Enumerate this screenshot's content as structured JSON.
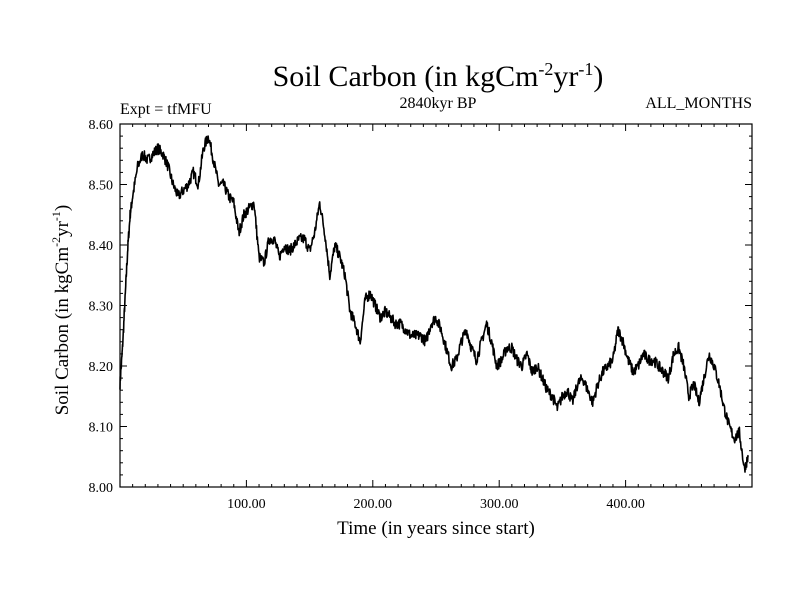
{
  "chart_data": {
    "type": "line",
    "title": "Soil Carbon (in kgCm",
    "title_unit_exp1": "-2",
    "title_unit_mid": "yr",
    "title_unit_exp2": "-1",
    "title_close": ")",
    "subtitle_left": "Expt = tfMFU",
    "subtitle_center": "2840kyr BP",
    "subtitle_right": "ALL_MONTHS",
    "xlabel": "Time (in years since start)",
    "ylabel": "Soil Carbon (in kgCm",
    "ylabel_exp1": "-2",
    "ylabel_mid": "yr",
    "ylabel_exp2": "-1",
    "ylabel_close": ")",
    "xlim": [
      0,
      500
    ],
    "ylim": [
      8.0,
      8.6
    ],
    "xticks": [
      100,
      200,
      300,
      400
    ],
    "xtick_labels": [
      "100.00",
      "200.00",
      "300.00",
      "400.00"
    ],
    "yticks": [
      8.0,
      8.1,
      8.2,
      8.3,
      8.4,
      8.5,
      8.6
    ],
    "ytick_labels": [
      "8.00",
      "8.10",
      "8.20",
      "8.30",
      "8.40",
      "8.50",
      "8.60"
    ],
    "grid": false,
    "line_color": "#000000",
    "series": [
      {
        "name": "Soil Carbon",
        "x": [
          0,
          2,
          4,
          6,
          8,
          10,
          14,
          18,
          22,
          26,
          30,
          34,
          38,
          42,
          46,
          50,
          54,
          58,
          62,
          66,
          70,
          74,
          78,
          82,
          86,
          90,
          94,
          98,
          102,
          106,
          110,
          114,
          118,
          122,
          126,
          130,
          134,
          138,
          142,
          146,
          150,
          154,
          158,
          162,
          166,
          170,
          174,
          178,
          182,
          186,
          190,
          194,
          198,
          202,
          206,
          210,
          214,
          218,
          222,
          226,
          230,
          234,
          238,
          242,
          246,
          250,
          254,
          258,
          262,
          266,
          270,
          274,
          278,
          282,
          286,
          290,
          294,
          298,
          302,
          306,
          310,
          314,
          318,
          322,
          326,
          330,
          334,
          338,
          342,
          346,
          350,
          354,
          358,
          362,
          366,
          370,
          374,
          378,
          382,
          386,
          390,
          394,
          398,
          402,
          406,
          410,
          414,
          418,
          422,
          426,
          430,
          434,
          438,
          442,
          446,
          450,
          454,
          458,
          462,
          466,
          470,
          474,
          478,
          482,
          486,
          490,
          494,
          497
        ],
        "values": [
          8.17,
          8.23,
          8.31,
          8.39,
          8.45,
          8.48,
          8.53,
          8.55,
          8.54,
          8.55,
          8.56,
          8.55,
          8.53,
          8.5,
          8.48,
          8.49,
          8.5,
          8.52,
          8.5,
          8.56,
          8.58,
          8.54,
          8.5,
          8.5,
          8.48,
          8.47,
          8.42,
          8.45,
          8.46,
          8.47,
          8.38,
          8.37,
          8.41,
          8.41,
          8.38,
          8.4,
          8.39,
          8.4,
          8.41,
          8.41,
          8.39,
          8.42,
          8.47,
          8.42,
          8.35,
          8.4,
          8.38,
          8.35,
          8.29,
          8.27,
          8.24,
          8.31,
          8.32,
          8.3,
          8.28,
          8.29,
          8.28,
          8.27,
          8.27,
          8.26,
          8.25,
          8.25,
          8.25,
          8.24,
          8.27,
          8.28,
          8.26,
          8.23,
          8.2,
          8.21,
          8.24,
          8.26,
          8.23,
          8.21,
          8.24,
          8.27,
          8.24,
          8.2,
          8.21,
          8.23,
          8.23,
          8.21,
          8.2,
          8.22,
          8.19,
          8.2,
          8.18,
          8.16,
          8.15,
          8.13,
          8.15,
          8.16,
          8.14,
          8.17,
          8.18,
          8.16,
          8.14,
          8.17,
          8.19,
          8.2,
          8.21,
          8.26,
          8.24,
          8.21,
          8.19,
          8.2,
          8.22,
          8.21,
          8.21,
          8.2,
          8.19,
          8.18,
          8.22,
          8.23,
          8.2,
          8.15,
          8.17,
          8.14,
          8.18,
          8.22,
          8.2,
          8.17,
          8.13,
          8.1,
          8.08,
          8.09,
          8.03,
          8.05
        ]
      }
    ]
  }
}
